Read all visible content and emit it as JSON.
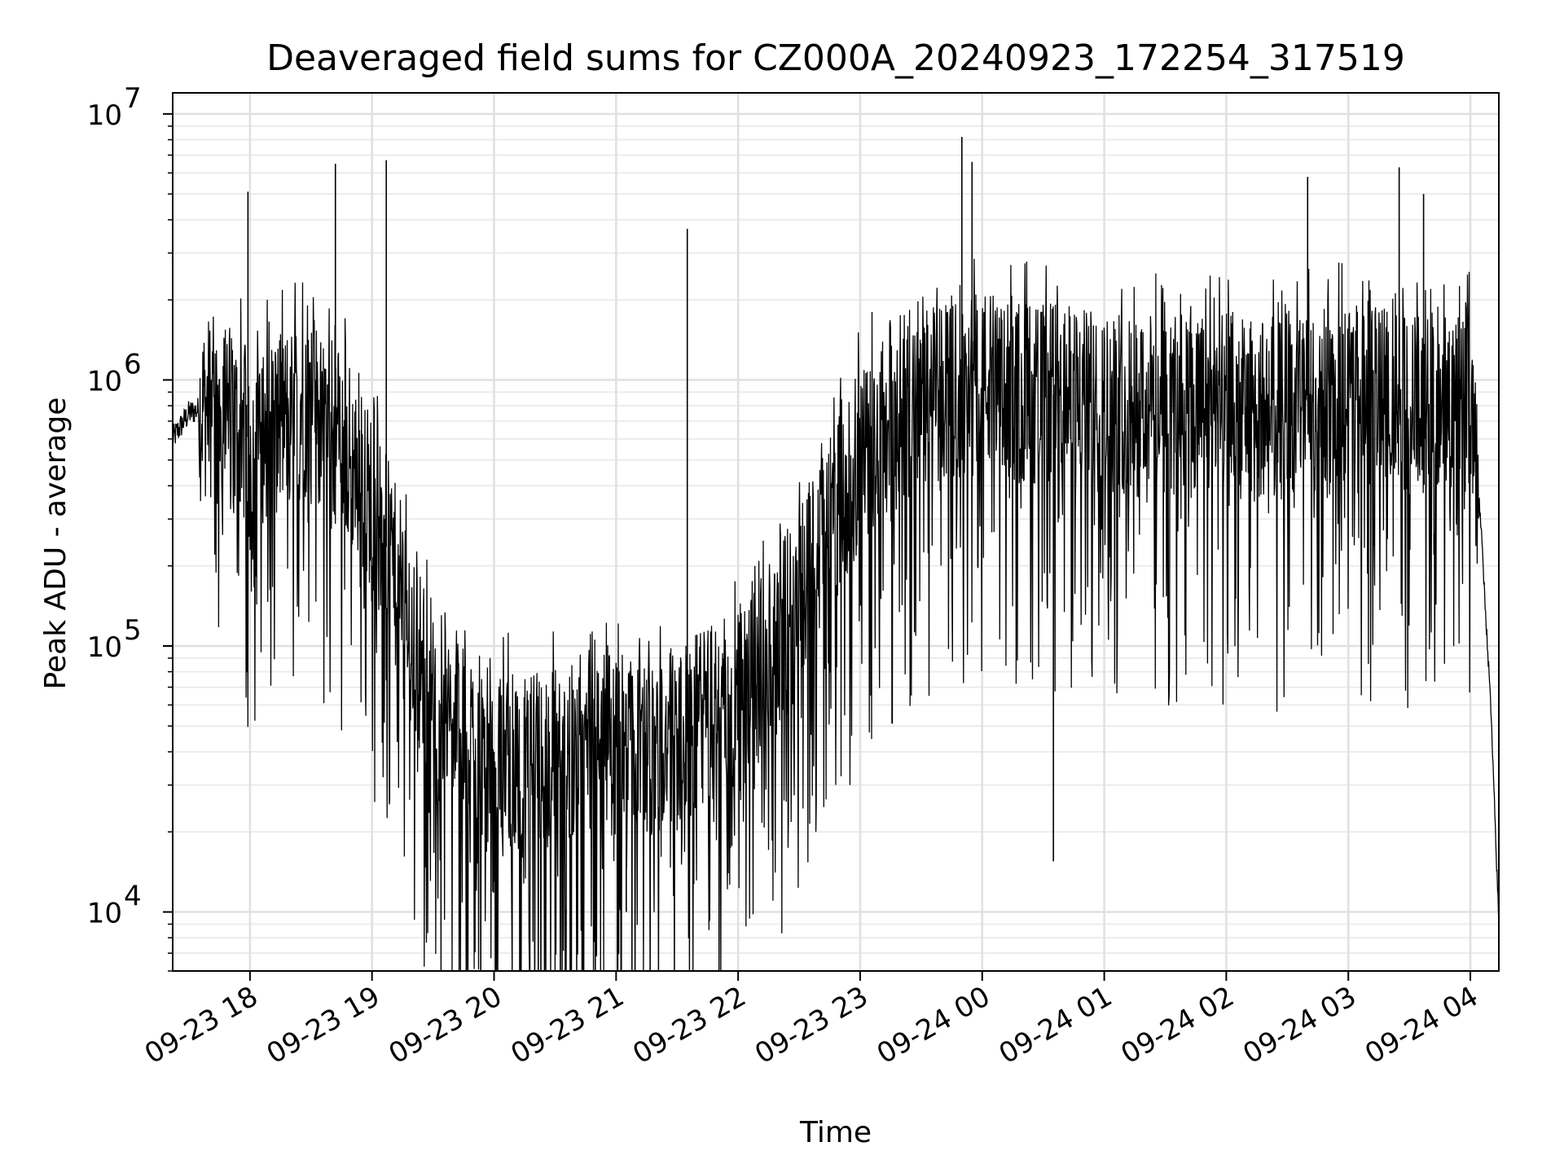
{
  "chart_data": {
    "type": "line",
    "title": "Deaveraged field sums for CZ000A_20240923_172254_317519",
    "xlabel": "Time",
    "ylabel": "Peak ADU - average",
    "y_scale": "log",
    "ylim": [
      6000,
      12000000
    ],
    "xlim": [
      "2024-09-23 17:22",
      "2024-09-24 04:14"
    ],
    "grid": true,
    "x_ticks": [
      {
        "t": "2024-09-23 18:00",
        "label": "09-23 18"
      },
      {
        "t": "2024-09-23 19:00",
        "label": "09-23 19"
      },
      {
        "t": "2024-09-23 20:00",
        "label": "09-23 20"
      },
      {
        "t": "2024-09-23 21:00",
        "label": "09-23 21"
      },
      {
        "t": "2024-09-23 22:00",
        "label": "09-23 22"
      },
      {
        "t": "2024-09-23 23:00",
        "label": "09-23 23"
      },
      {
        "t": "2024-09-24 00:00",
        "label": "09-24 00"
      },
      {
        "t": "2024-09-24 01:00",
        "label": "09-24 01"
      },
      {
        "t": "2024-09-24 02:00",
        "label": "09-24 02"
      },
      {
        "t": "2024-09-24 03:00",
        "label": "09-24 03"
      },
      {
        "t": "2024-09-24 04:00",
        "label": "09-24 04"
      }
    ],
    "y_ticks": [
      {
        "v": 10000,
        "base": "10",
        "exp": "4"
      },
      {
        "v": 100000,
        "base": "10",
        "exp": "5"
      },
      {
        "v": 1000000,
        "base": "10",
        "exp": "6"
      },
      {
        "v": 10000000,
        "base": "10",
        "exp": "7"
      }
    ],
    "series": [
      {
        "color": "#000000",
        "x": [
          "2024-09-23 17:22",
          "2024-09-23 17:30",
          "2024-09-23 17:40",
          "2024-09-23 17:50",
          "2024-09-23 18:00",
          "2024-09-23 18:15",
          "2024-09-23 18:30",
          "2024-09-23 18:45",
          "2024-09-23 19:00",
          "2024-09-23 19:15",
          "2024-09-23 19:30",
          "2024-09-23 19:45",
          "2024-09-23 20:00",
          "2024-09-23 20:15",
          "2024-09-23 20:30",
          "2024-09-23 20:45",
          "2024-09-23 21:00",
          "2024-09-23 21:15",
          "2024-09-23 21:30",
          "2024-09-23 21:45",
          "2024-09-23 22:00",
          "2024-09-23 22:15",
          "2024-09-23 22:30",
          "2024-09-23 22:45",
          "2024-09-23 23:00",
          "2024-09-23 23:15",
          "2024-09-23 23:30",
          "2024-09-23 23:45",
          "2024-09-24 00:00",
          "2024-09-24 00:15",
          "2024-09-24 00:30",
          "2024-09-24 00:45",
          "2024-09-24 01:00",
          "2024-09-24 01:15",
          "2024-09-24 01:30",
          "2024-09-24 01:45",
          "2024-09-24 02:00",
          "2024-09-24 02:15",
          "2024-09-24 02:30",
          "2024-09-24 02:45",
          "2024-09-24 03:00",
          "2024-09-24 03:15",
          "2024-09-24 03:30",
          "2024-09-24 03:45",
          "2024-09-24 04:00",
          "2024-09-24 04:05",
          "2024-09-24 04:10",
          "2024-09-24 04:14"
        ],
        "y": [
          600000,
          750000,
          800000,
          700000,
          600000,
          700000,
          800000,
          600000,
          350000,
          150000,
          60000,
          45000,
          40000,
          35000,
          38000,
          45000,
          42000,
          40000,
          45000,
          55000,
          60000,
          90000,
          150000,
          300000,
          500000,
          700000,
          800000,
          900000,
          1000000,
          900000,
          900000,
          850000,
          800000,
          850000,
          800000,
          800000,
          800000,
          750000,
          800000,
          850000,
          900000,
          850000,
          800000,
          850000,
          850000,
          300000,
          60000,
          9000
        ],
        "peaks": [
          {
            "t": "2024-09-23 17:59",
            "v": 5100000
          },
          {
            "t": "2024-09-23 18:42",
            "v": 6500000
          },
          {
            "t": "2024-09-23 19:07",
            "v": 6700000
          },
          {
            "t": "2024-09-23 21:35",
            "v": 3700000
          },
          {
            "t": "2024-09-23 23:50",
            "v": 8200000
          },
          {
            "t": "2024-09-23 23:55",
            "v": 6600000
          },
          {
            "t": "2024-09-24 02:40",
            "v": 5800000
          },
          {
            "t": "2024-09-24 03:25",
            "v": 6300000
          },
          {
            "t": "2024-09-24 03:37",
            "v": 5000000
          }
        ],
        "troughs": [
          {
            "t": "2024-09-23 20:00",
            "v": 13000
          },
          {
            "t": "2024-09-23 21:05",
            "v": 10000
          },
          {
            "t": "2024-09-24 00:35",
            "v": 15500
          }
        ]
      }
    ]
  }
}
